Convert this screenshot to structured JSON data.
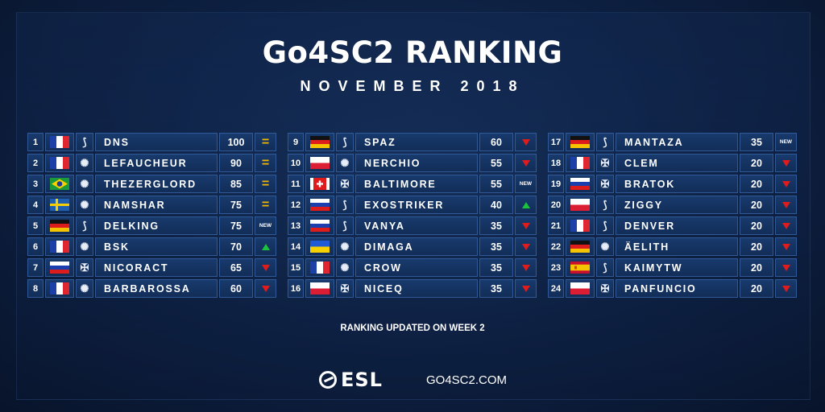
{
  "header": {
    "title": "Go4SC2 RANKING",
    "subtitle": "NOVEMBER 2018"
  },
  "colors": {
    "up": "#19c43a",
    "down": "#e01b1b",
    "equal": "#f0b800"
  },
  "columns": [
    [
      {
        "rank": "1",
        "flag": "fr",
        "race": "protoss",
        "name": "DNS",
        "points": "100",
        "change": "equal"
      },
      {
        "rank": "2",
        "flag": "fr",
        "race": "zerg",
        "name": "LEFAUCHEUR",
        "points": "90",
        "change": "equal"
      },
      {
        "rank": "3",
        "flag": "br",
        "race": "zerg",
        "name": "THEZERGLORD",
        "points": "85",
        "change": "equal"
      },
      {
        "rank": "4",
        "flag": "se",
        "race": "zerg",
        "name": "NAMSHAR",
        "points": "75",
        "change": "equal"
      },
      {
        "rank": "5",
        "flag": "de",
        "race": "protoss",
        "name": "DELKING",
        "points": "75",
        "change": "new"
      },
      {
        "rank": "6",
        "flag": "fr",
        "race": "zerg",
        "name": "BSK",
        "points": "70",
        "change": "up"
      },
      {
        "rank": "7",
        "flag": "ru",
        "race": "terran",
        "name": "NICORACT",
        "points": "65",
        "change": "down"
      },
      {
        "rank": "8",
        "flag": "fr",
        "race": "zerg",
        "name": "BARBAROSSA",
        "points": "60",
        "change": "down"
      }
    ],
    [
      {
        "rank": "9",
        "flag": "de",
        "race": "protoss",
        "name": "SPAZ",
        "points": "60",
        "change": "down"
      },
      {
        "rank": "10",
        "flag": "pl",
        "race": "zerg",
        "name": "NERCHIO",
        "points": "55",
        "change": "down"
      },
      {
        "rank": "11",
        "flag": "ch",
        "race": "terran",
        "name": "BALTIMORE",
        "points": "55",
        "change": "new"
      },
      {
        "rank": "12",
        "flag": "ru",
        "race": "protoss",
        "name": "EXOSTRIKER",
        "points": "40",
        "change": "up"
      },
      {
        "rank": "13",
        "flag": "ru",
        "race": "protoss",
        "name": "VANYA",
        "points": "35",
        "change": "down"
      },
      {
        "rank": "14",
        "flag": "ua",
        "race": "zerg",
        "name": "DIMAGA",
        "points": "35",
        "change": "down"
      },
      {
        "rank": "15",
        "flag": "fr",
        "race": "zerg",
        "name": "CROW",
        "points": "35",
        "change": "down"
      },
      {
        "rank": "16",
        "flag": "pl",
        "race": "terran",
        "name": "NICEQ",
        "points": "35",
        "change": "down"
      }
    ],
    [
      {
        "rank": "17",
        "flag": "de",
        "race": "protoss",
        "name": "MANTAZA",
        "points": "35",
        "change": "new"
      },
      {
        "rank": "18",
        "flag": "fr",
        "race": "terran",
        "name": "CLEM",
        "points": "20",
        "change": "down"
      },
      {
        "rank": "19",
        "flag": "ru",
        "race": "terran",
        "name": "BRATOK",
        "points": "20",
        "change": "down"
      },
      {
        "rank": "20",
        "flag": "pl",
        "race": "protoss",
        "name": "ZIGGY",
        "points": "20",
        "change": "down"
      },
      {
        "rank": "21",
        "flag": "fr",
        "race": "protoss",
        "name": "DENVER",
        "points": "20",
        "change": "down"
      },
      {
        "rank": "22",
        "flag": "de",
        "race": "zerg",
        "name": "ÄELITH",
        "points": "20",
        "change": "down"
      },
      {
        "rank": "23",
        "flag": "es",
        "race": "protoss",
        "name": "KAIMYTW",
        "points": "20",
        "change": "down"
      },
      {
        "rank": "24",
        "flag": "pl",
        "race": "terran",
        "name": "PANFUNCIO",
        "points": "20",
        "change": "down"
      }
    ]
  ],
  "labels": {
    "new": "NEW",
    "equal": "="
  },
  "footer": {
    "note": "RANKING UPDATED ON WEEK 2",
    "brand": "ESL",
    "site": "GO4SC2.COM"
  }
}
